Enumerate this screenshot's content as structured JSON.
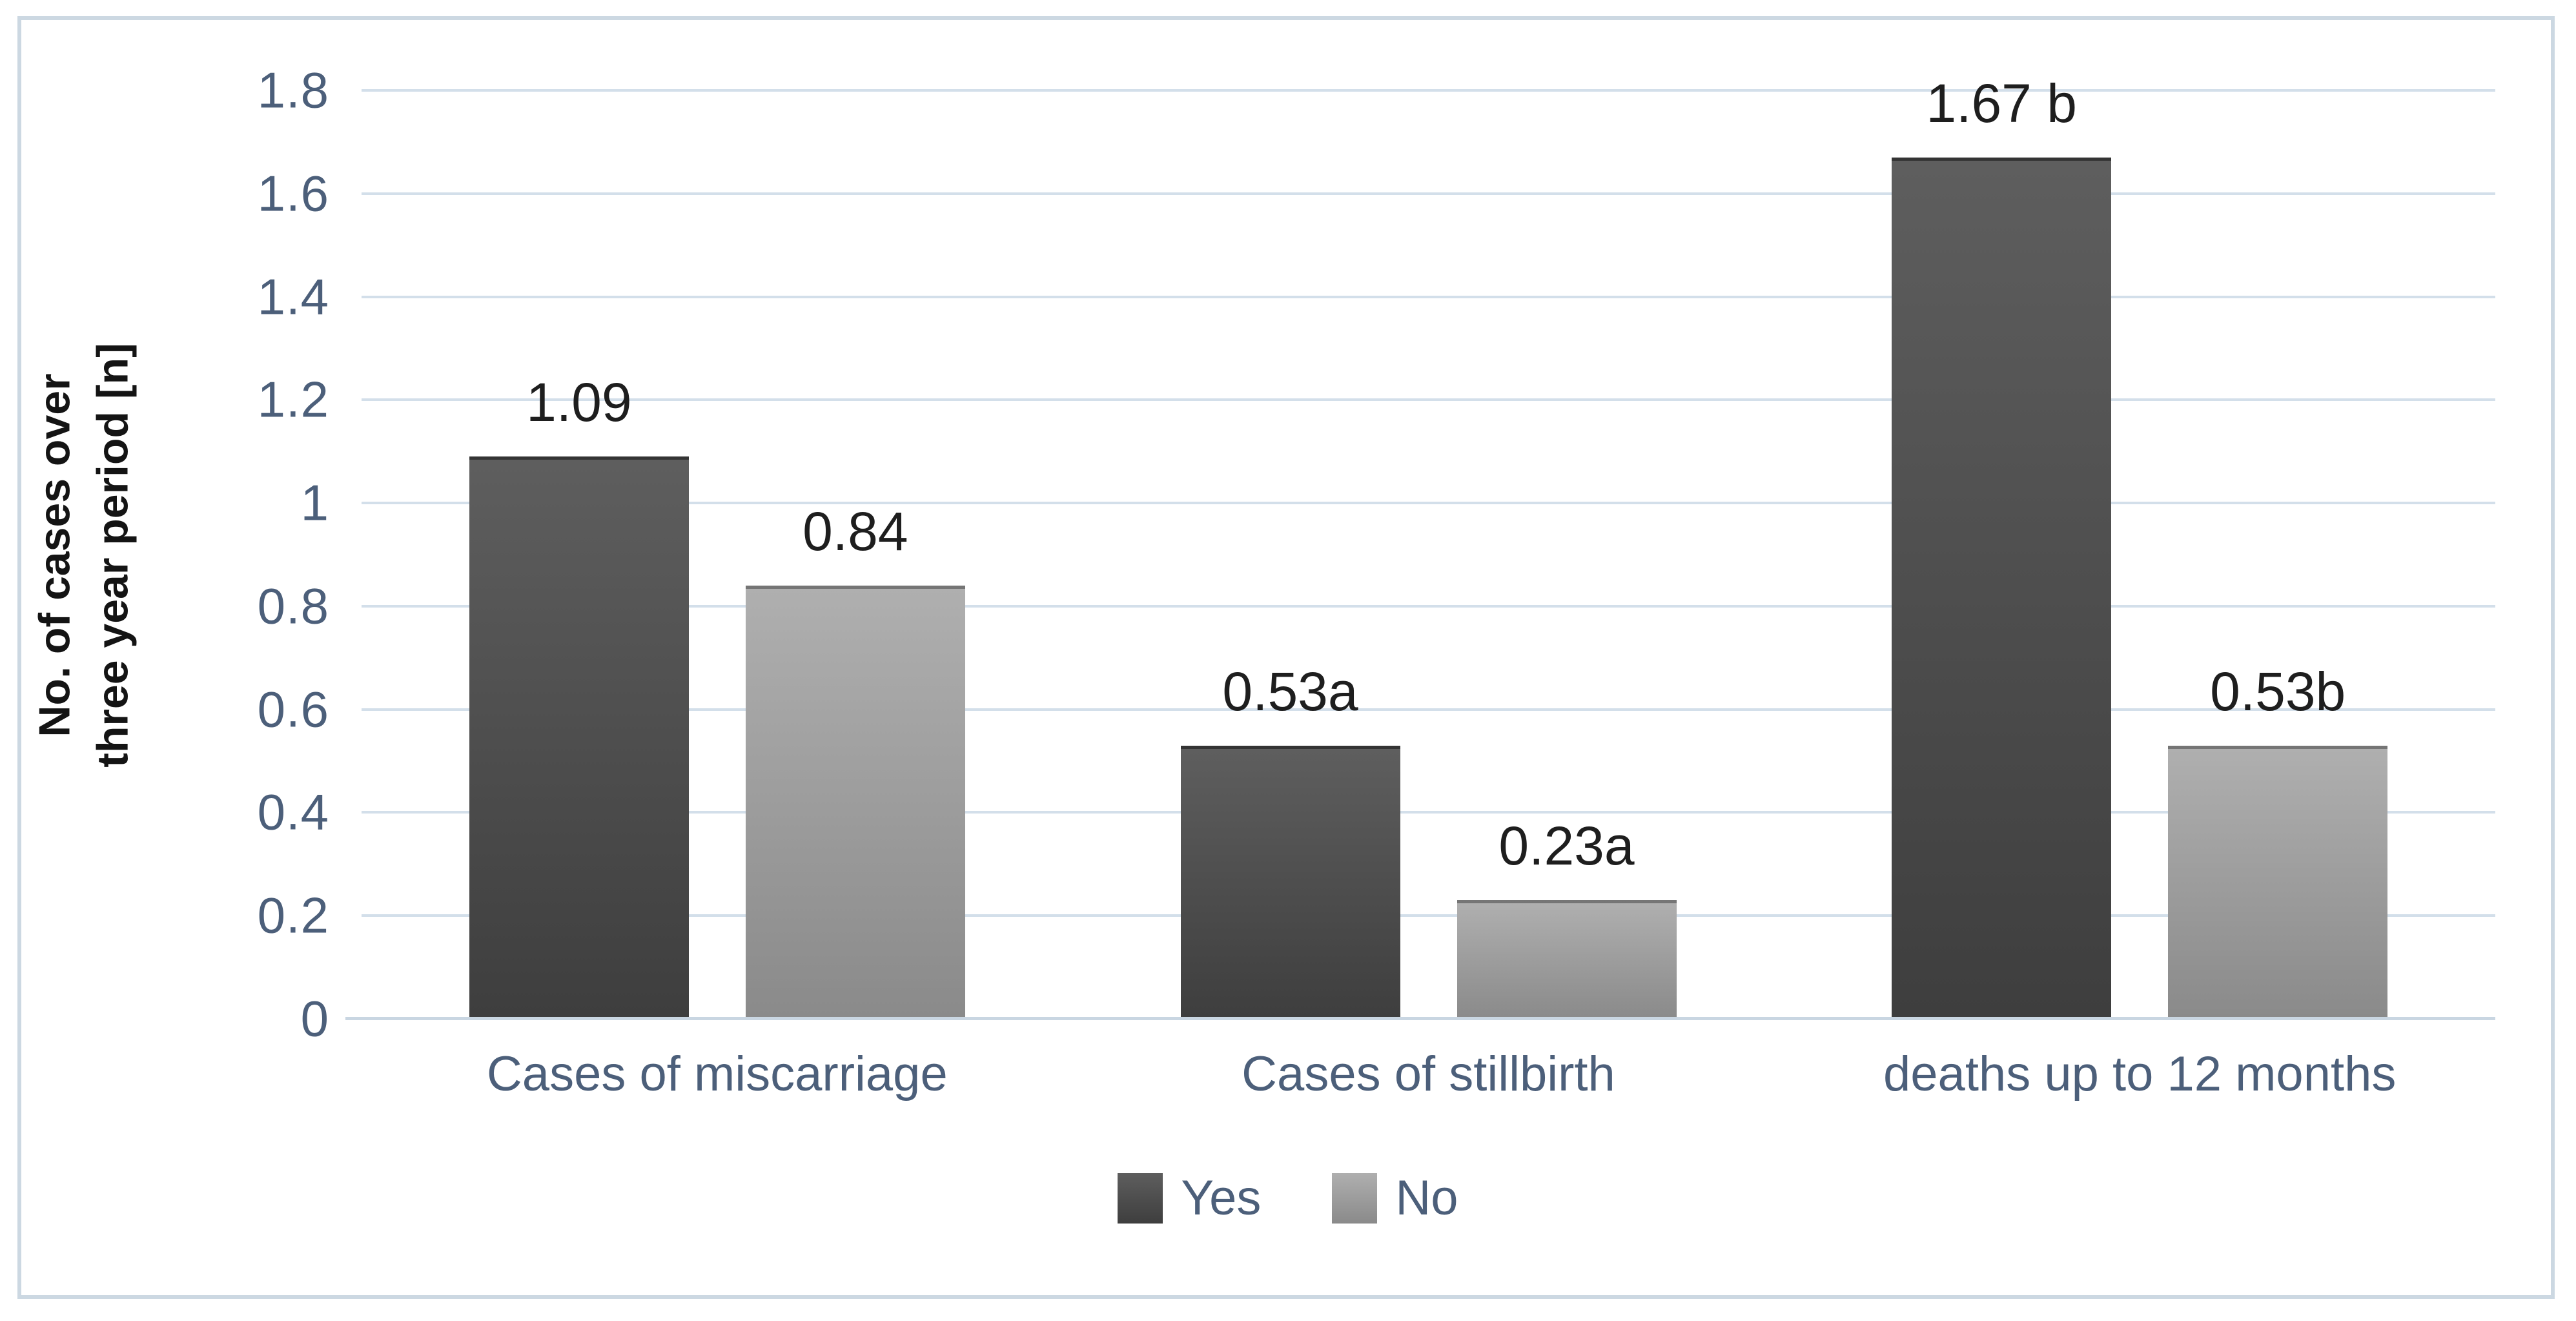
{
  "chart_data": {
    "type": "bar",
    "title": "",
    "xlabel": "",
    "ylabel": "No. of cases over\nthree year period [n]",
    "ylim": [
      0,
      1.8
    ],
    "grid": true,
    "legend_position": "bottom",
    "categories": [
      "Cases of miscarriage",
      "Cases of stillbirth",
      "deaths up to 12 months"
    ],
    "series": [
      {
        "name": "Yes",
        "values": [
          1.09,
          0.53,
          1.67
        ],
        "data_labels": [
          "1.09",
          "0.53a",
          "1.67 b"
        ],
        "color_top": "#5e5e5e",
        "color_bottom": "#3e3e3e"
      },
      {
        "name": "No",
        "values": [
          0.84,
          0.23,
          0.53
        ],
        "data_labels": [
          "0.84",
          "0.23a",
          "0.53b"
        ],
        "color_top": "#afafaf",
        "color_bottom": "#8a8a8a"
      }
    ],
    "yticks": [
      {
        "value": 0,
        "label": "0"
      },
      {
        "value": 0.2,
        "label": "0.2"
      },
      {
        "value": 0.4,
        "label": "0.4"
      },
      {
        "value": 0.6,
        "label": "0.6"
      },
      {
        "value": 0.8,
        "label": "0.8"
      },
      {
        "value": 1,
        "label": "1"
      },
      {
        "value": 1.2,
        "label": "1.2"
      },
      {
        "value": 1.4,
        "label": "1.4"
      },
      {
        "value": 1.6,
        "label": "1.6"
      },
      {
        "value": 1.8,
        "label": "1.8"
      }
    ]
  },
  "colors": {
    "gridline": "#d3dfea",
    "axis_line": "#c9d6e2",
    "chart_border": "#ccd8e2",
    "axis_text": "#4c5f7a",
    "data_label_text": "#1e1e1e",
    "axis_title_text": "#141414"
  }
}
